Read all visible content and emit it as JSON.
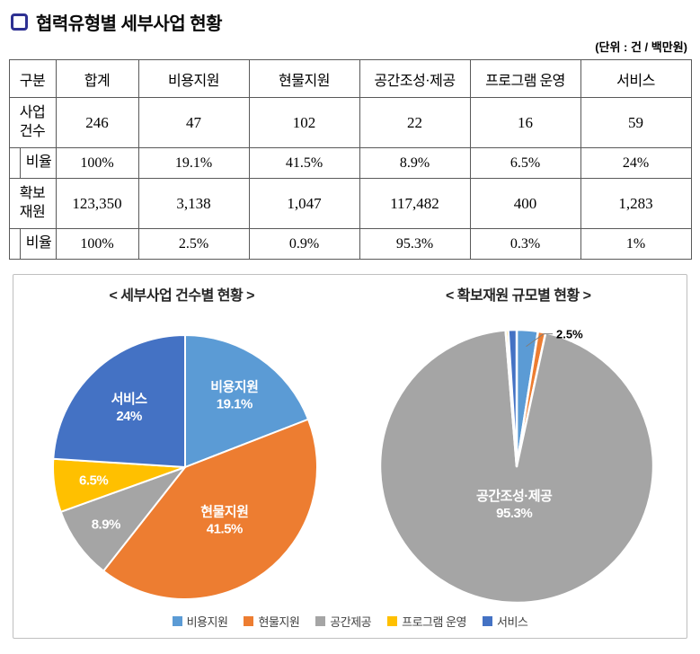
{
  "header": {
    "title": "협력유형별 세부사업 현황",
    "unit_note": "(단위 : 건 / 백만원)",
    "icon_color": "#2E3192"
  },
  "table": {
    "headers": [
      "구분",
      "합계",
      "비용지원",
      "현물지원",
      "공간조성·제공",
      "프로그램 운영",
      "서비스"
    ],
    "rows": [
      {
        "label": "사업\n건수",
        "cells": [
          "246",
          "47",
          "102",
          "22",
          "16",
          "59"
        ]
      },
      {
        "label": "비율",
        "cells": [
          "100%",
          "19.1%",
          "41.5%",
          "8.9%",
          "6.5%",
          "24%"
        ]
      },
      {
        "label": "확보\n재원",
        "cells": [
          "123,350",
          "3,138",
          "1,047",
          "117,482",
          "400",
          "1,283"
        ]
      },
      {
        "label": "비율",
        "cells": [
          "100%",
          "2.5%",
          "0.9%",
          "95.3%",
          "0.3%",
          "1%"
        ]
      }
    ]
  },
  "chart_data": [
    {
      "type": "pie",
      "title": "< 세부사업 건수별 현황 >",
      "slices": [
        {
          "name": "비용지원",
          "value": 19.1,
          "color": "#5B9BD5",
          "label": "비용지원\n19.1%",
          "label_r": 0.66,
          "label_color": "#ffffff"
        },
        {
          "name": "현물지원",
          "value": 41.5,
          "color": "#ED7D31",
          "label": "현물지원\n41.5%",
          "label_r": 0.5,
          "label_color": "#ffffff"
        },
        {
          "name": "공간제공",
          "value": 8.9,
          "color": "#A5A5A5",
          "label": "8.9%",
          "label_r": 0.74,
          "label_color": "#ffffff"
        },
        {
          "name": "프로그램 운영",
          "value": 6.5,
          "color": "#FFC000",
          "label": "6.5%",
          "label_r": 0.7,
          "label_color": "#ffffff"
        },
        {
          "name": "서비스",
          "value": 24.0,
          "color": "#4472C4",
          "label": "서비스\n24%",
          "label_r": 0.62,
          "label_color": "#ffffff"
        }
      ]
    },
    {
      "type": "pie",
      "title": "< 확보재원 규모별 현황 >",
      "slices": [
        {
          "name": "비용지원",
          "value": 2.5,
          "color": "#5B9BD5",
          "label": "2.5%",
          "label_color": "#000000",
          "outside": true
        },
        {
          "name": "현물지원",
          "value": 0.9,
          "color": "#ED7D31"
        },
        {
          "name": "공간조성·제공",
          "value": 95.3,
          "color": "#A5A5A5",
          "label": "공간조성·제공\n95.3%",
          "label_r": 0.28,
          "label_color": "#ffffff"
        },
        {
          "name": "프로그램 운영",
          "value": 0.3,
          "color": "#FFC000"
        },
        {
          "name": "서비스",
          "value": 1.0,
          "color": "#4472C4"
        }
      ]
    }
  ],
  "legend": {
    "items": [
      {
        "label": "비용지원",
        "color": "#5B9BD5"
      },
      {
        "label": "현물지원",
        "color": "#ED7D31"
      },
      {
        "label": "공간제공",
        "color": "#A5A5A5"
      },
      {
        "label": "프로그램 운영",
        "color": "#FFC000"
      },
      {
        "label": "서비스",
        "color": "#4472C4"
      }
    ]
  }
}
